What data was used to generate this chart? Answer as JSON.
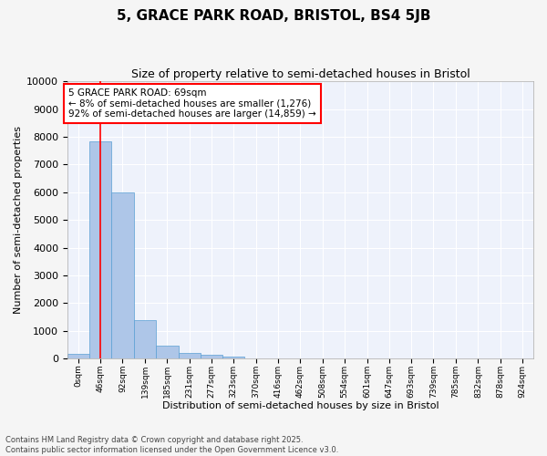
{
  "title": "5, GRACE PARK ROAD, BRISTOL, BS4 5JB",
  "subtitle": "Size of property relative to semi-detached houses in Bristol",
  "xlabel": "Distribution of semi-detached houses by size in Bristol",
  "ylabel": "Number of semi-detached properties",
  "property_size": 69,
  "bin_width": 46,
  "bin_edges": [
    0,
    46,
    92,
    139,
    185,
    231,
    277,
    323,
    370,
    416,
    462,
    508,
    554,
    601,
    647,
    693,
    739,
    785,
    832,
    878,
    924,
    970
  ],
  "bar_heights": [
    170,
    7850,
    6000,
    1400,
    480,
    220,
    140,
    65,
    0,
    0,
    0,
    0,
    0,
    0,
    0,
    0,
    0,
    0,
    0,
    0,
    0
  ],
  "bar_color": "#aec6e8",
  "bar_edge_color": "#5a9fd4",
  "red_line_x": 69,
  "annotation_text": "5 GRACE PARK ROAD: 69sqm\n← 8% of semi-detached houses are smaller (1,276)\n92% of semi-detached houses are larger (14,859) →",
  "ylim": [
    0,
    10000
  ],
  "yticks": [
    0,
    1000,
    2000,
    3000,
    4000,
    5000,
    6000,
    7000,
    8000,
    9000,
    10000
  ],
  "xlim": [
    0,
    970
  ],
  "background_color": "#eef2fb",
  "grid_color": "#ffffff",
  "footer_text": "Contains HM Land Registry data © Crown copyright and database right 2025.\nContains public sector information licensed under the Open Government Licence v3.0.",
  "title_fontsize": 11,
  "subtitle_fontsize": 9,
  "ylabel_fontsize": 8,
  "xlabel_fontsize": 8,
  "ytick_fontsize": 8,
  "xtick_fontsize": 6.5,
  "annotation_fontsize": 7.5,
  "footer_fontsize": 6
}
